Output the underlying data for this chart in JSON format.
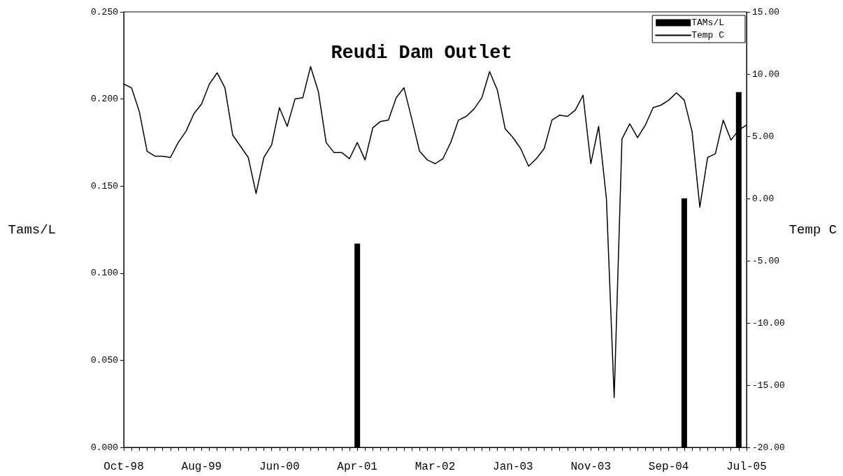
{
  "chart_data": {
    "type": "bar",
    "title": "Reudi Dam Outlet",
    "ylabel": "Tams/L",
    "y2label": "Temp C",
    "categories": [
      "Oct-98",
      null,
      null,
      null,
      null,
      null,
      null,
      null,
      null,
      null,
      "Aug-99",
      null,
      null,
      null,
      null,
      null,
      null,
      null,
      null,
      null,
      "Jun-00",
      null,
      null,
      null,
      null,
      null,
      null,
      null,
      null,
      null,
      "Apr-01",
      null,
      null,
      null,
      null,
      null,
      null,
      null,
      null,
      null,
      "Mar-02",
      null,
      null,
      null,
      null,
      null,
      null,
      null,
      null,
      null,
      "Jan-03",
      null,
      null,
      null,
      null,
      null,
      null,
      null,
      null,
      null,
      "Nov-03",
      null,
      null,
      null,
      null,
      null,
      null,
      null,
      null,
      null,
      "Sep-04",
      null,
      null,
      null,
      null,
      null,
      null,
      null,
      null,
      null,
      "Jul-05"
    ],
    "series": [
      {
        "name": "TAMs/L",
        "color": "#000000",
        "values": [
          null,
          null,
          null,
          null,
          null,
          null,
          null,
          null,
          null,
          null,
          null,
          null,
          null,
          null,
          null,
          null,
          null,
          null,
          null,
          null,
          null,
          null,
          null,
          null,
          null,
          null,
          null,
          null,
          null,
          null,
          0.117,
          null,
          null,
          null,
          null,
          null,
          null,
          null,
          null,
          null,
          null,
          null,
          null,
          null,
          null,
          null,
          null,
          null,
          null,
          null,
          null,
          null,
          null,
          null,
          null,
          null,
          null,
          null,
          null,
          null,
          null,
          null,
          null,
          null,
          null,
          null,
          null,
          null,
          null,
          null,
          null,
          null,
          0.143,
          null,
          null,
          null,
          null,
          null,
          null,
          0.204,
          null
        ]
      },
      {
        "name": "Temp C",
        "type": "line",
        "axis": "y2",
        "color": "#000000",
        "values": [
          9.2,
          8.9,
          7.0,
          3.8,
          3.4,
          3.4,
          3.3,
          4.5,
          5.4,
          6.8,
          7.6,
          9.2,
          10.1,
          8.9,
          5.1,
          4.2,
          3.3,
          0.4,
          3.3,
          4.3,
          7.3,
          5.8,
          8.0,
          8.1,
          10.6,
          8.6,
          4.5,
          3.7,
          3.7,
          3.2,
          4.5,
          3.1,
          5.7,
          6.2,
          6.3,
          8.1,
          8.9,
          6.4,
          3.8,
          3.1,
          2.8,
          3.2,
          4.5,
          6.3,
          6.6,
          7.2,
          8.1,
          10.2,
          8.7,
          5.6,
          4.9,
          4.0,
          2.6,
          3.2,
          4.0,
          6.3,
          6.7,
          6.6,
          7.1,
          8.3,
          2.8,
          5.8,
          0.0,
          -16.0,
          4.8,
          6.0,
          4.9,
          5.9,
          7.3,
          7.5,
          7.9,
          8.5,
          7.9,
          5.4,
          -0.7,
          3.3,
          3.6,
          6.3,
          4.7,
          5.5,
          5.9
        ]
      }
    ],
    "ylim": [
      0,
      0.25
    ],
    "yticks": [
      {
        "value": 0,
        "label": "0.000"
      },
      {
        "value": 0.05,
        "label": "0.050"
      },
      {
        "value": 0.1,
        "label": "0.100"
      },
      {
        "value": 0.15,
        "label": "0.150"
      },
      {
        "value": 0.2,
        "label": "0.200"
      },
      {
        "value": 0.25,
        "label": "0.250"
      }
    ],
    "y2lim": [
      -20,
      15
    ],
    "y2ticks": [
      {
        "value": -20,
        "label": "-20.00"
      },
      {
        "value": -15,
        "label": "-15.00"
      },
      {
        "value": -10,
        "label": "-10.00"
      },
      {
        "value": -5,
        "label": "-5.00"
      },
      {
        "value": 0,
        "label": "0.00"
      },
      {
        "value": 5,
        "label": "5.00"
      },
      {
        "value": 10,
        "label": "10.00"
      },
      {
        "value": 15,
        "label": "15.00"
      }
    ],
    "legend": "top right",
    "marker": "none"
  }
}
